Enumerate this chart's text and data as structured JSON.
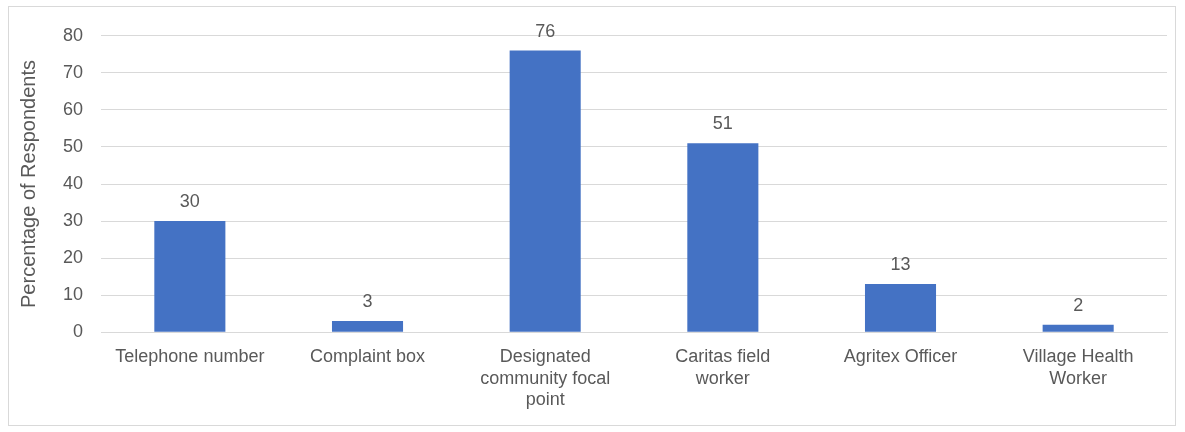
{
  "chart_data": {
    "type": "bar",
    "ylabel": "Percentage of Respondents",
    "categories": [
      "Telephone number",
      "Complaint box",
      "Designated community focal point",
      "Caritas field worker",
      "Agritex Officer",
      "Village Health Worker"
    ],
    "values": [
      30,
      3,
      76,
      51,
      13,
      2
    ],
    "color": "#4472c4",
    "ylim": [
      0,
      80
    ],
    "yticks": [
      0,
      10,
      20,
      30,
      40,
      50,
      60,
      70,
      80
    ],
    "grid": "y",
    "data_labels": true,
    "legend": false
  }
}
